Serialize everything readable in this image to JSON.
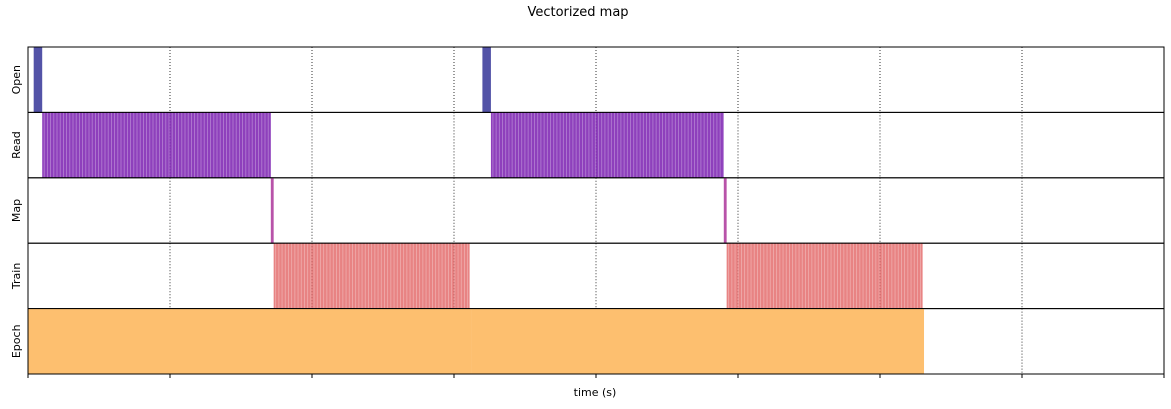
{
  "chart_data": {
    "type": "bar",
    "title": "Vectorized map",
    "xlabel": "time (s)",
    "ylabel": "",
    "xlim": [
      0,
      8
    ],
    "grid": "vertical-dotted",
    "tick_labels_shown": false,
    "x_ticks": [
      0,
      1,
      2,
      3,
      4,
      5,
      6,
      7,
      8
    ],
    "rows": [
      {
        "name": "Open",
        "color": "#1a1a8a",
        "opacity": 0.75,
        "stripes": false,
        "intervals": [
          [
            0.04,
            0.1
          ],
          [
            3.2,
            3.26
          ]
        ]
      },
      {
        "name": "Read",
        "color": "#7a1fb0",
        "opacity": 0.85,
        "stripes": true,
        "intervals": [
          [
            0.1,
            1.71
          ],
          [
            3.26,
            4.9
          ]
        ]
      },
      {
        "name": "Map",
        "color": "#b040a0",
        "opacity": 0.9,
        "stripes": false,
        "intervals": [
          [
            1.71,
            1.73
          ],
          [
            4.9,
            4.92
          ]
        ]
      },
      {
        "name": "Train",
        "color": "#e05a5a",
        "opacity": 0.75,
        "stripes": true,
        "intervals": [
          [
            1.73,
            3.11
          ],
          [
            4.92,
            6.3
          ]
        ]
      },
      {
        "name": "Epoch",
        "color": "#fdbf6f",
        "opacity": 1.0,
        "stripes": false,
        "intervals": [
          [
            0.0,
            3.12
          ],
          [
            3.12,
            6.31
          ]
        ]
      }
    ]
  }
}
